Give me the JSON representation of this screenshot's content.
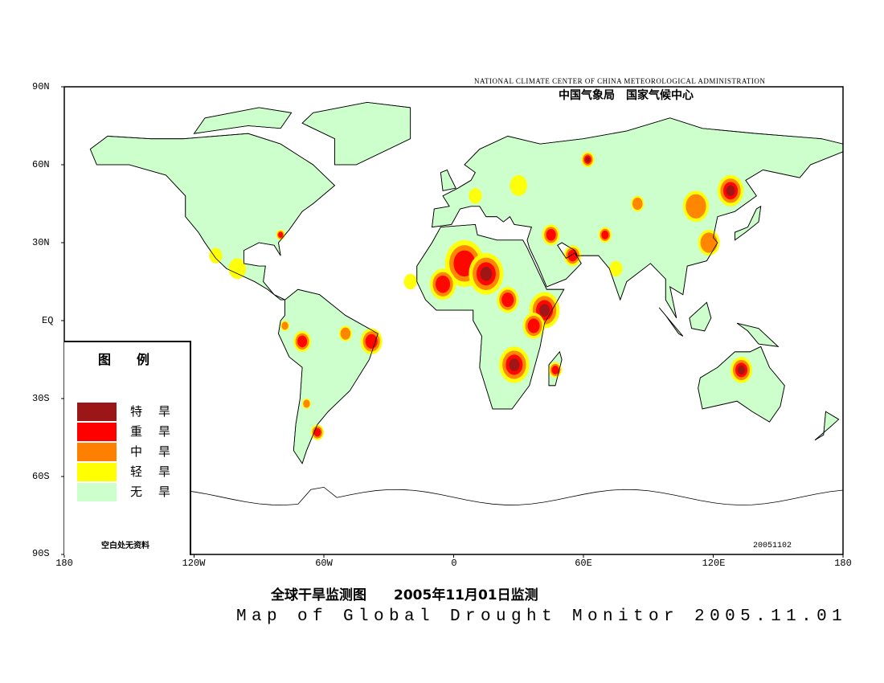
{
  "header": {
    "agency_en": "NATIONAL CLIMATE CENTER OF CHINA METEOROLOGICAL ADMINISTRATION",
    "agency_cn": "中国气象局　国家气候中心"
  },
  "axes": {
    "lat_labels": [
      "90N",
      "60N",
      "30N",
      "EQ",
      "30S",
      "60S",
      "90S"
    ],
    "lon_labels": [
      "180",
      "120W",
      "60W",
      "0",
      "60E",
      "120E",
      "180"
    ]
  },
  "legend": {
    "title": "图例",
    "items": [
      {
        "label": "特旱",
        "color": "#9b1617"
      },
      {
        "label": "重旱",
        "color": "#ff0000"
      },
      {
        "label": "中旱",
        "color": "#ff8000"
      },
      {
        "label": "轻旱",
        "color": "#ffff00"
      },
      {
        "label": "无旱",
        "color": "#ccffcc"
      }
    ],
    "note": "空白处无资料"
  },
  "stamp": "20051102",
  "title_cn": "全球干旱监测图　　2005年11月01日监测",
  "title_en": "Map of Global Drought Monitor 2005.11.01"
}
